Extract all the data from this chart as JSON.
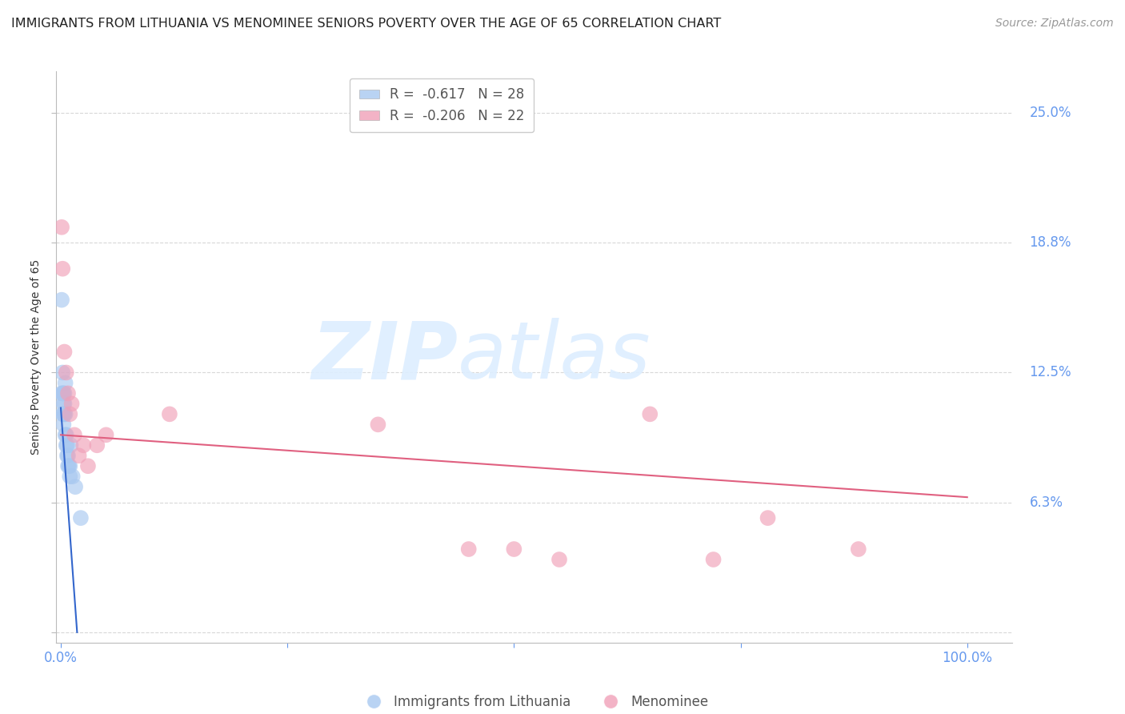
{
  "title": "IMMIGRANTS FROM LITHUANIA VS MENOMINEE SENIORS POVERTY OVER THE AGE OF 65 CORRELATION CHART",
  "source": "Source: ZipAtlas.com",
  "ylabel": "Seniors Poverty Over the Age of 65",
  "blue_R": -0.617,
  "blue_N": 28,
  "pink_R": -0.206,
  "pink_N": 22,
  "blue_label": "Immigrants from Lithuania",
  "pink_label": "Menominee",
  "blue_color": "#a8c8f0",
  "pink_color": "#f0a0b8",
  "blue_line_color": "#3366cc",
  "pink_line_color": "#e06080",
  "background_color": "#ffffff",
  "grid_color": "#d8d8d8",
  "tick_label_color": "#6699ee",
  "watermark_color": "#ddeeff",
  "ylim": [
    -0.005,
    0.27
  ],
  "xlim": [
    -0.005,
    1.05
  ],
  "ytick_vals": [
    0.0,
    0.0625,
    0.125,
    0.1875,
    0.25
  ],
  "ytick_labels": [
    "",
    "6.3%",
    "12.5%",
    "18.8%",
    "25.0%"
  ],
  "xtick_vals": [
    0.0,
    0.25,
    0.5,
    0.75,
    1.0
  ],
  "xtick_labels": [
    "0.0%",
    "",
    "",
    "",
    "100.0%"
  ],
  "blue_scatter_x": [
    0.001,
    0.001,
    0.002,
    0.002,
    0.002,
    0.003,
    0.003,
    0.003,
    0.003,
    0.004,
    0.004,
    0.004,
    0.005,
    0.005,
    0.005,
    0.006,
    0.006,
    0.007,
    0.007,
    0.008,
    0.008,
    0.009,
    0.01,
    0.01,
    0.011,
    0.013,
    0.016,
    0.022
  ],
  "blue_scatter_y": [
    0.16,
    0.115,
    0.125,
    0.115,
    0.105,
    0.115,
    0.11,
    0.105,
    0.1,
    0.115,
    0.11,
    0.105,
    0.12,
    0.105,
    0.095,
    0.095,
    0.09,
    0.09,
    0.085,
    0.085,
    0.08,
    0.08,
    0.08,
    0.075,
    0.09,
    0.075,
    0.07,
    0.055
  ],
  "pink_scatter_x": [
    0.001,
    0.002,
    0.004,
    0.006,
    0.008,
    0.01,
    0.012,
    0.015,
    0.02,
    0.025,
    0.03,
    0.04,
    0.05,
    0.12,
    0.35,
    0.45,
    0.5,
    0.55,
    0.65,
    0.72,
    0.78,
    0.88
  ],
  "pink_scatter_y": [
    0.195,
    0.175,
    0.135,
    0.125,
    0.115,
    0.105,
    0.11,
    0.095,
    0.085,
    0.09,
    0.08,
    0.09,
    0.095,
    0.105,
    0.1,
    0.04,
    0.04,
    0.035,
    0.105,
    0.035,
    0.055,
    0.04
  ],
  "blue_trendline_x": [
    0.0,
    0.018
  ],
  "blue_trendline_y": [
    0.108,
    0.0
  ],
  "pink_trendline_x": [
    0.0,
    1.0
  ],
  "pink_trendline_y": [
    0.095,
    0.065
  ],
  "blue_dot_size": 200,
  "pink_dot_size": 200,
  "title_fontsize": 11.5,
  "source_fontsize": 10,
  "axis_label_fontsize": 10,
  "tick_fontsize": 12,
  "legend_fontsize": 12
}
